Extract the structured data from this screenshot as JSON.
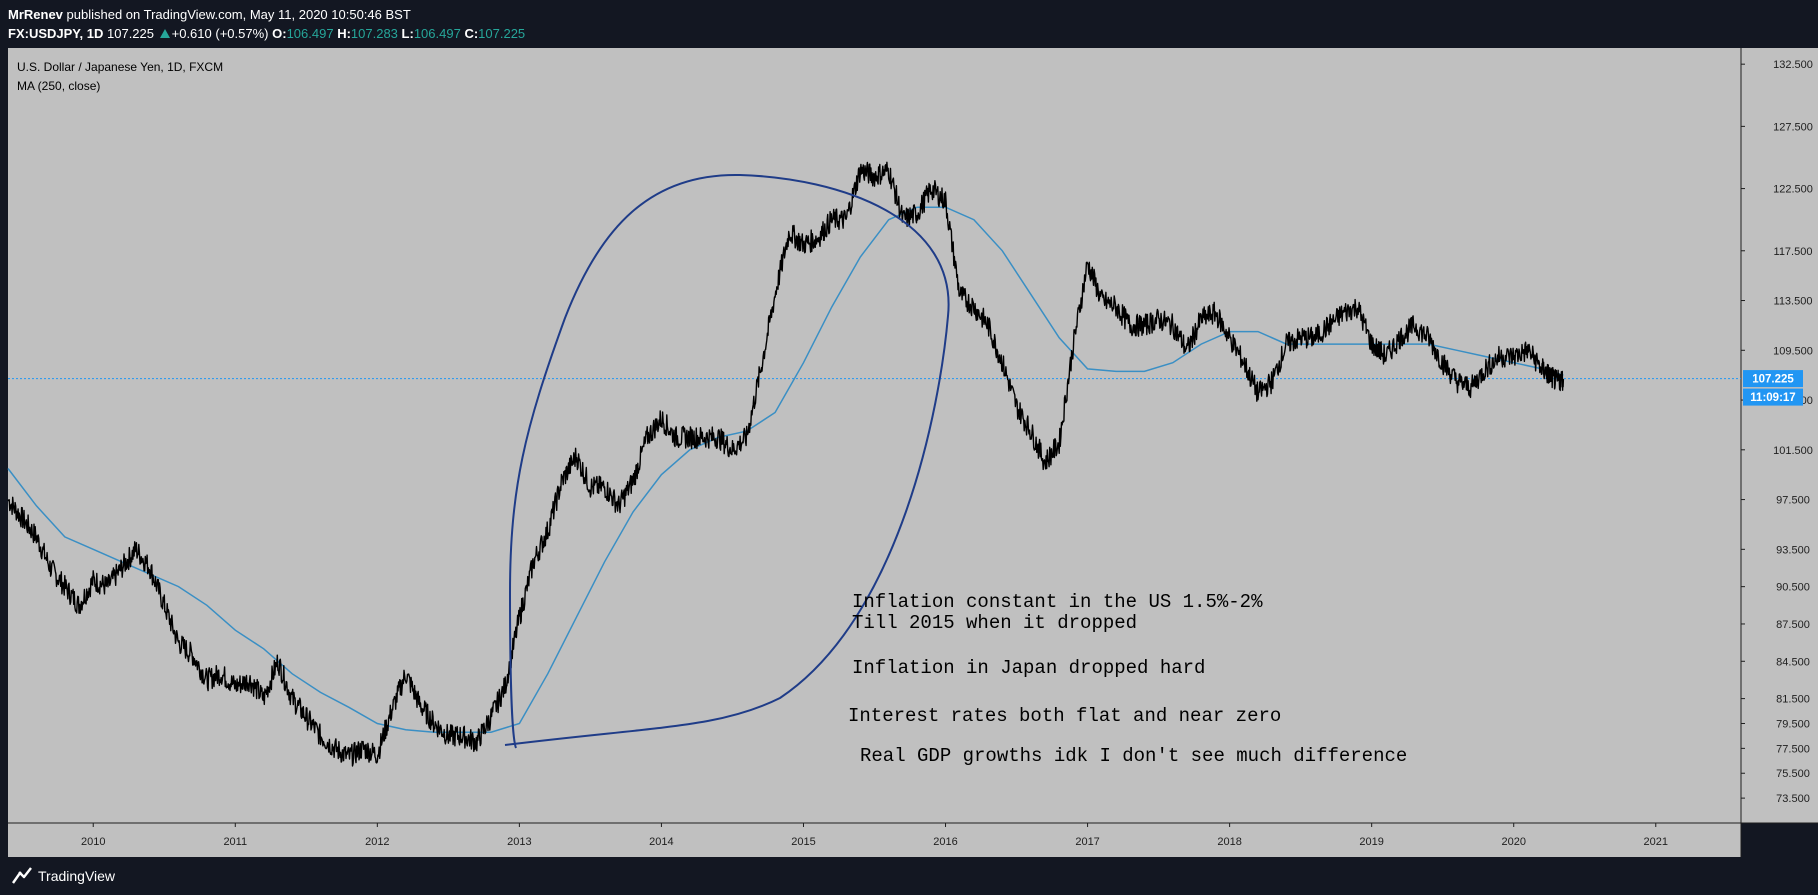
{
  "header": {
    "author": "MrRenev",
    "published": " published on TradingView.com, May 11, 2020 10:50:46 BST",
    "symbol": "FX:USDJPY, 1D",
    "last": "107.225",
    "change": "+0.610 (+0.57%)",
    "o_label": "O:",
    "o_value": "106.497",
    "h_label": "H:",
    "h_value": "107.283",
    "l_label": "L:",
    "l_value": "106.497",
    "c_label": "C:",
    "c_value": "107.225"
  },
  "legend": {
    "instrument": "U.S. Dollar / Japanese Yen, 1D, FXCM",
    "indicator": "MA (250, close)"
  },
  "price_tag": {
    "price": "107.225",
    "countdown": "11:09:17"
  },
  "annotations": [
    "Inflation constant in the US 1.5%-2%",
    "Till 2015 when it dropped",
    "Inflation in Japan dropped hard",
    "Interest rates both flat and near zero",
    "Real GDP growths idk I don't see much difference"
  ],
  "footer": {
    "brand": "TradingView"
  },
  "colors": {
    "background": "#131722",
    "plot_background": "#c0c0c0",
    "price_line": "#000000",
    "ma_line": "#3a8fc4",
    "drawing": "#1f3c88",
    "tag": "#2196f3",
    "up": "#26a69a"
  },
  "chart_data": {
    "type": "line",
    "title": "U.S. Dollar / Japanese Yen, 1D, FXCM",
    "xlabel": "",
    "ylabel": "",
    "xlim": [
      2009.4,
      2021.6
    ],
    "ylim": [
      71.5,
      133.8
    ],
    "x_ticks": [
      "2010",
      "2011",
      "2012",
      "2013",
      "2014",
      "2015",
      "2016",
      "2017",
      "2018",
      "2019",
      "2020",
      "2021"
    ],
    "y_ticks": [
      "132.500",
      "127.500",
      "122.500",
      "117.500",
      "113.500",
      "109.500",
      "105.500",
      "101.500",
      "97.500",
      "93.500",
      "90.500",
      "87.500",
      "84.500",
      "81.500",
      "79.500",
      "77.500",
      "75.500",
      "73.500"
    ],
    "y_tick_values": [
      132.5,
      127.5,
      122.5,
      117.5,
      113.5,
      109.5,
      105.5,
      101.5,
      97.5,
      93.5,
      90.5,
      87.5,
      84.5,
      81.5,
      79.5,
      77.5,
      75.5,
      73.5
    ],
    "last_price": 107.225,
    "grid": false,
    "series": [
      {
        "name": "FX:USDJPY",
        "x": [
          2009.4,
          2009.5,
          2009.6,
          2009.7,
          2009.8,
          2009.9,
          2010.0,
          2010.1,
          2010.2,
          2010.3,
          2010.4,
          2010.5,
          2010.6,
          2010.7,
          2010.8,
          2010.9,
          2011.0,
          2011.1,
          2011.2,
          2011.3,
          2011.4,
          2011.5,
          2011.6,
          2011.7,
          2011.8,
          2011.9,
          2012.0,
          2012.1,
          2012.2,
          2012.3,
          2012.4,
          2012.5,
          2012.6,
          2012.7,
          2012.8,
          2012.9,
          2013.0,
          2013.1,
          2013.2,
          2013.3,
          2013.4,
          2013.5,
          2013.6,
          2013.7,
          2013.8,
          2013.9,
          2014.0,
          2014.1,
          2014.2,
          2014.3,
          2014.4,
          2014.5,
          2014.6,
          2014.7,
          2014.8,
          2014.9,
          2015.0,
          2015.1,
          2015.2,
          2015.3,
          2015.4,
          2015.5,
          2015.6,
          2015.7,
          2015.8,
          2015.9,
          2016.0,
          2016.1,
          2016.2,
          2016.3,
          2016.4,
          2016.5,
          2016.6,
          2016.7,
          2016.8,
          2016.9,
          2017.0,
          2017.1,
          2017.2,
          2017.3,
          2017.4,
          2017.5,
          2017.6,
          2017.7,
          2017.8,
          2017.9,
          2018.0,
          2018.1,
          2018.2,
          2018.3,
          2018.4,
          2018.5,
          2018.6,
          2018.7,
          2018.8,
          2018.9,
          2019.0,
          2019.1,
          2019.2,
          2019.3,
          2019.4,
          2019.5,
          2019.6,
          2019.7,
          2019.8,
          2019.9,
          2020.0,
          2020.1,
          2020.2,
          2020.25,
          2020.3,
          2020.35
        ],
        "values": [
          97.5,
          96.0,
          94.5,
          92.0,
          90.5,
          89.0,
          91.0,
          90.5,
          92.0,
          93.5,
          92.0,
          89.0,
          86.0,
          85.0,
          83.0,
          83.5,
          82.5,
          83.0,
          81.5,
          84.5,
          81.5,
          80.0,
          78.5,
          77.5,
          76.8,
          77.5,
          77.0,
          80.5,
          83.5,
          81.0,
          79.5,
          78.5,
          78.5,
          78.0,
          80.0,
          82.5,
          88.0,
          92.5,
          95.0,
          99.0,
          101.0,
          98.5,
          98.5,
          97.0,
          99.0,
          102.5,
          104.0,
          102.5,
          102.5,
          102.5,
          102.5,
          101.5,
          102.5,
          108.0,
          114.0,
          119.0,
          118.0,
          118.5,
          120.0,
          120.0,
          124.0,
          123.5,
          124.0,
          120.0,
          120.5,
          122.5,
          121.5,
          114.0,
          113.0,
          111.5,
          108.5,
          105.0,
          103.0,
          100.5,
          102.0,
          110.0,
          116.5,
          113.5,
          113.0,
          111.5,
          111.5,
          112.0,
          111.5,
          109.5,
          112.0,
          112.5,
          110.5,
          108.5,
          106.0,
          107.0,
          110.0,
          110.5,
          110.5,
          111.5,
          112.5,
          113.0,
          110.0,
          109.0,
          110.5,
          111.5,
          110.5,
          108.5,
          107.0,
          106.5,
          108.0,
          109.0,
          109.0,
          109.5,
          108.0,
          107.5,
          107.0,
          107.2
        ]
      },
      {
        "name": "MA (250, close)",
        "x": [
          2009.4,
          2009.6,
          2009.8,
          2010.0,
          2010.2,
          2010.4,
          2010.6,
          2010.8,
          2011.0,
          2011.2,
          2011.4,
          2011.6,
          2011.8,
          2012.0,
          2012.2,
          2012.4,
          2012.6,
          2012.8,
          2013.0,
          2013.2,
          2013.4,
          2013.6,
          2013.8,
          2014.0,
          2014.2,
          2014.4,
          2014.6,
          2014.8,
          2015.0,
          2015.2,
          2015.4,
          2015.6,
          2015.8,
          2016.0,
          2016.2,
          2016.4,
          2016.6,
          2016.8,
          2017.0,
          2017.2,
          2017.4,
          2017.6,
          2017.8,
          2018.0,
          2018.2,
          2018.4,
          2018.6,
          2018.8,
          2019.0,
          2019.2,
          2019.4,
          2019.6,
          2019.8,
          2020.0,
          2020.2,
          2020.35
        ],
        "values": [
          100.0,
          97.0,
          94.5,
          93.5,
          92.5,
          91.5,
          90.5,
          89.0,
          87.0,
          85.5,
          83.5,
          82.0,
          80.8,
          79.5,
          79.0,
          78.8,
          78.8,
          78.8,
          79.5,
          83.5,
          88.0,
          92.5,
          96.5,
          99.5,
          101.5,
          102.5,
          103.0,
          104.5,
          108.5,
          113.0,
          117.0,
          120.0,
          121.0,
          121.0,
          120.0,
          117.5,
          114.0,
          110.5,
          108.0,
          107.8,
          107.8,
          108.5,
          110.0,
          111.0,
          111.0,
          110.0,
          110.0,
          110.0,
          110.0,
          110.0,
          110.0,
          109.5,
          109.0,
          108.5,
          108.0,
          107.5
        ]
      }
    ]
  }
}
